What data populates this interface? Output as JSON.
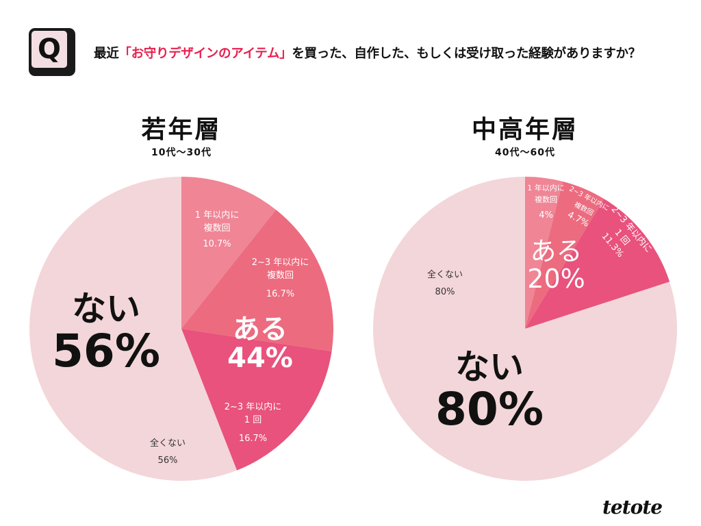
{
  "header": {
    "q_icon": "Q",
    "question_prefix": "最近",
    "question_highlight": "「お守りデザインのアイテム」",
    "question_suffix": "を買った、自作した、もしくは受け取った経験がありますか？"
  },
  "logo": "tetote",
  "colors": {
    "slice1": "#ef8595",
    "slice2": "#ec6b7f",
    "slice3": "#e8527c",
    "none": "#f3d6d9",
    "highlight": "#e8204e"
  },
  "chart_data": [
    {
      "type": "pie",
      "title": "若年層",
      "subtitle": "10代〜30代",
      "slices": [
        {
          "label_line1": "1 年以内に",
          "label_line2": "複数回",
          "value": 10.7,
          "value_label": "10.7%"
        },
        {
          "label_line1": "2~3 年以内に",
          "label_line2": "複数回",
          "value": 16.7,
          "value_label": "16.7%"
        },
        {
          "label_line1": "2~3 年以内に",
          "label_line2": "1 回",
          "value": 16.7,
          "value_label": "16.7%"
        },
        {
          "label_line1": "全くない",
          "label_line2": "",
          "value": 56,
          "value_label": "56%"
        }
      ],
      "yes_label": "ある",
      "yes_value": "44%",
      "no_label": "ない",
      "no_value": "56%"
    },
    {
      "type": "pie",
      "title": "中高年層",
      "subtitle": "40代〜60代",
      "slices": [
        {
          "label_line1": "1 年以内に",
          "label_line2": "複数回",
          "value": 4,
          "value_label": "4%"
        },
        {
          "label_line1": "2~3 年以内に",
          "label_line2": "複数回",
          "value": 4.7,
          "value_label": "4.7%"
        },
        {
          "label_line1": "2~3 年以内に",
          "label_line2": "1 回",
          "value": 11.3,
          "value_label": "11.3%"
        },
        {
          "label_line1": "全くない",
          "label_line2": "",
          "value": 80,
          "value_label": "80%"
        }
      ],
      "yes_label": "ある",
      "yes_value": "20%",
      "no_label": "ない",
      "no_value": "80%"
    }
  ]
}
